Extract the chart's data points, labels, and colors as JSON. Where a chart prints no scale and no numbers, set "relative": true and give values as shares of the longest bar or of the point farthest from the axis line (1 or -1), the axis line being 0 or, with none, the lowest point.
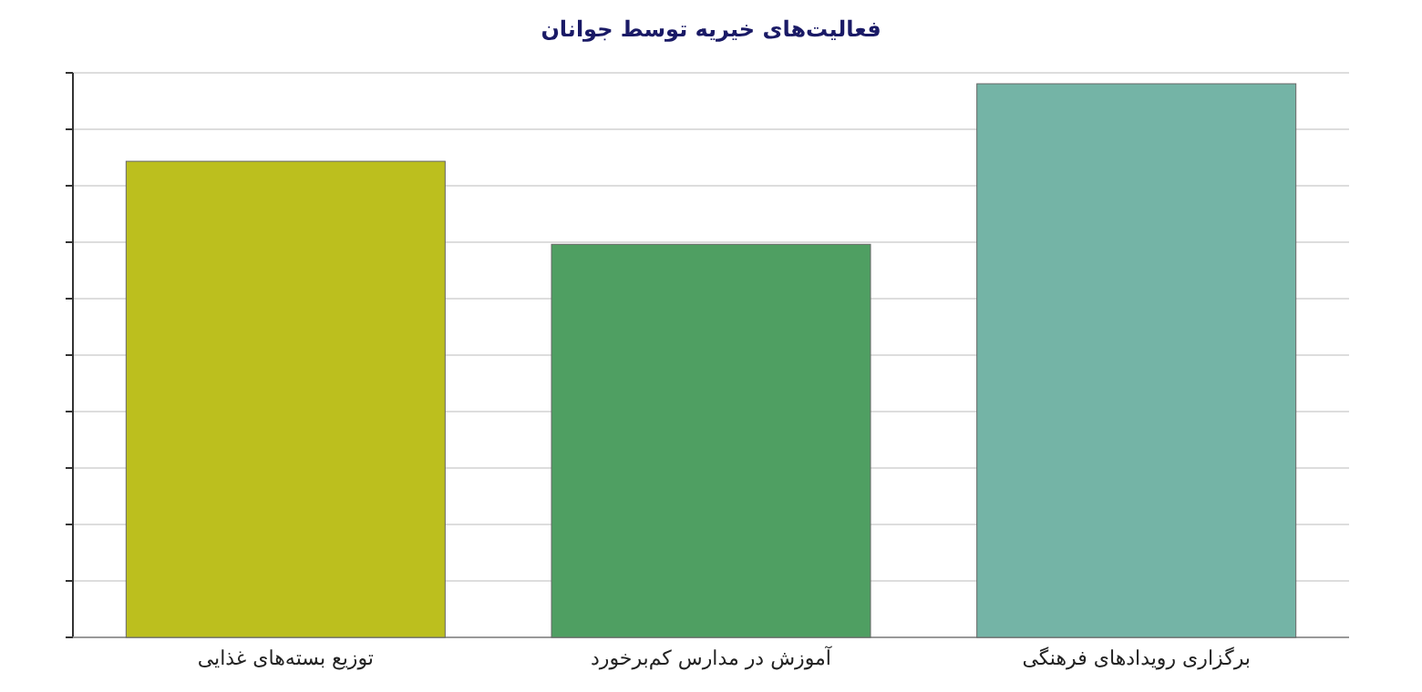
{
  "chart_data": {
    "type": "bar",
    "title": "فعالیت‌های خیریه توسط جوانان",
    "relative": true,
    "grid": true,
    "categories": [
      "توزیع بسته‌های غذایی",
      "آموزش در مدارس کم‌برخورد",
      "برگزاری رویدادهای فرهنگی"
    ],
    "values": [
      0.86,
      0.71,
      1
    ],
    "colors": [
      "#bcbf1e",
      "#4f9f62",
      "#74b4a6"
    ]
  }
}
